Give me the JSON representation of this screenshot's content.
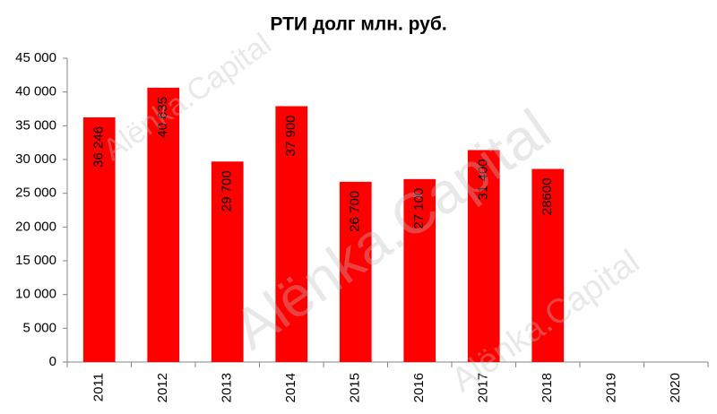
{
  "chart_data": {
    "type": "bar",
    "title": "РТИ долг млн. руб.",
    "categories": [
      "2011",
      "2012",
      "2013",
      "2014",
      "2015",
      "2016",
      "2017",
      "2018",
      "2019",
      "2020"
    ],
    "values": [
      36246,
      40635,
      29700,
      37900,
      26700,
      27100,
      31400,
      28600,
      null,
      null
    ],
    "value_labels": [
      "36 246",
      "40 635",
      "29 700",
      "37 900",
      "26 700",
      "27 100",
      "31 400",
      "28600",
      null,
      null
    ],
    "color": "#ff0000",
    "ylim": [
      0,
      45000
    ],
    "yticks": [
      0,
      {
        "value": 5000,
        "label": "5 000"
      },
      {
        "value": 10000,
        "label": "10 000"
      },
      {
        "value": 15000,
        "label": "15 000"
      },
      {
        "value": 20000,
        "label": "20 000"
      },
      {
        "value": 25000,
        "label": "25 000"
      },
      {
        "value": 30000,
        "label": "30 000"
      },
      {
        "value": 35000,
        "label": "35 000"
      },
      {
        "value": 40000,
        "label": "40 000"
      },
      {
        "value": 45000,
        "label": "45 000"
      }
    ],
    "grid": false,
    "watermark": "Alënka.Capital"
  }
}
